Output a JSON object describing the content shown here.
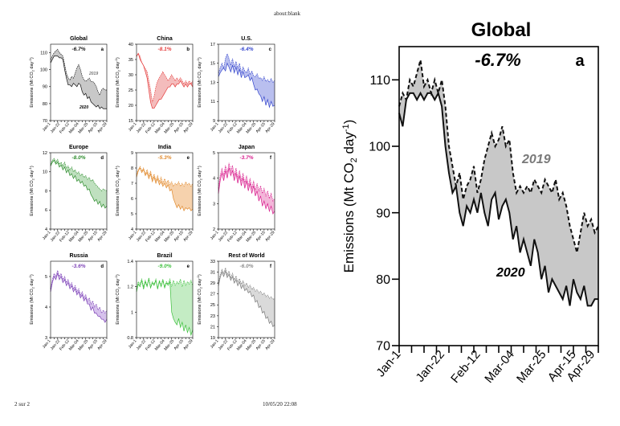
{
  "browser": {
    "tab_label": "about:blank"
  },
  "footer": {
    "page_counter": "2 sur 2",
    "timestamp": "10/05/20 22:08"
  },
  "zoom": {
    "panel_title": "Global",
    "panel_letter": "a",
    "change": "-6.7%",
    "ylabel_main": "Emissions (Mt CO",
    "ylabel_sub": "2",
    "ylabel_tail": " day",
    "ylabel_sup": "-1",
    "ylabel_end": ")",
    "label_2019": "2019",
    "label_2020": "2020"
  },
  "chart_data": [
    {
      "type": "area",
      "panel": "main",
      "title": "Global",
      "letter": "a",
      "change": "-6.7%",
      "change_color": "#111111",
      "ylim": [
        70,
        115
      ],
      "yticks": [
        70,
        80,
        90,
        100,
        110
      ],
      "xticks": [
        "Jan-1",
        "Jan-22",
        "Feb-12",
        "Mar-04",
        "Mar-25",
        "Apr-15",
        "Apr-29"
      ],
      "color": "#111111",
      "fill": "#c8c8c8",
      "series": [
        {
          "name": "2019",
          "values": [
            106,
            108,
            107,
            110,
            109,
            111,
            113,
            109,
            110,
            108,
            110,
            108,
            110,
            106,
            100,
            97,
            94,
            96,
            92,
            94,
            95,
            97,
            93,
            95,
            98,
            100,
            102,
            100,
            101,
            103,
            100,
            101,
            96,
            93,
            94,
            93,
            94,
            93,
            95,
            94,
            93,
            95,
            94,
            93,
            95,
            92,
            93,
            91,
            88,
            86,
            84,
            87,
            90,
            88,
            89,
            87,
            88
          ]
        },
        {
          "name": "2020",
          "values": [
            105,
            103,
            107,
            108,
            108,
            107,
            108,
            107,
            108,
            108,
            107,
            108,
            106,
            100,
            96,
            93,
            94,
            90,
            88,
            91,
            90,
            92,
            90,
            93,
            90,
            88,
            92,
            93,
            89,
            91,
            92,
            90,
            86,
            88,
            84,
            86,
            84,
            82,
            86,
            84,
            80,
            82,
            78,
            80,
            79,
            78,
            77,
            79,
            76,
            80,
            78,
            77,
            79,
            76,
            76,
            77,
            77
          ]
        }
      ]
    },
    {
      "type": "area",
      "panel": "small",
      "title": "Global",
      "letter": "a",
      "change": "-6.7%",
      "change_color": "#111111",
      "ylim": [
        70,
        115
      ],
      "yticks": [
        70,
        80,
        90,
        100,
        110
      ],
      "xticks": [
        "Jan-1",
        "Jan-22",
        "Feb-12",
        "Mar-04",
        "Mar-25",
        "Apr-15",
        "Apr-29"
      ],
      "color": "#111111",
      "fill": "#c8c8c8",
      "label_2019": "2019",
      "label_2020": "2020",
      "series": [
        {
          "name": "2019",
          "values": [
            106,
            108,
            110,
            111,
            112,
            110,
            109,
            108,
            103,
            98,
            95,
            94,
            96,
            95,
            98,
            101,
            103,
            100,
            96,
            94,
            93,
            94,
            95,
            93,
            93,
            92,
            90,
            87,
            85,
            88,
            89,
            88,
            88
          ]
        },
        {
          "name": "2020",
          "values": [
            104,
            106,
            108,
            108,
            108,
            107,
            107,
            106,
            100,
            95,
            91,
            91,
            90,
            92,
            91,
            90,
            92,
            91,
            87,
            85,
            86,
            83,
            84,
            81,
            80,
            79,
            78,
            79,
            77,
            78,
            77,
            77,
            77
          ]
        }
      ]
    },
    {
      "type": "area",
      "panel": "small",
      "title": "China",
      "letter": "b",
      "change": "-8.1%",
      "change_color": "#e53b3b",
      "ylim": [
        15,
        40
      ],
      "yticks": [
        15,
        20,
        25,
        30,
        35,
        40
      ],
      "xticks": [
        "Jan-1",
        "Jan-22",
        "Feb-12",
        "Mar-04",
        "Mar-25",
        "Apr-15",
        "Apr-29"
      ],
      "color": "#e53b3b",
      "fill": "#f4bcbc",
      "series": [
        {
          "name": "2019",
          "values": [
            36,
            37,
            36,
            34,
            33,
            32,
            31,
            28,
            25,
            21,
            23,
            26,
            28,
            29,
            30,
            31,
            30,
            29,
            28,
            29,
            30,
            29,
            28,
            29,
            28,
            29,
            28,
            27,
            28,
            27,
            28,
            27,
            28
          ]
        },
        {
          "name": "2020",
          "values": [
            36,
            37,
            35,
            34,
            33,
            31,
            29,
            25,
            21,
            19,
            19,
            20,
            21,
            22,
            22,
            23,
            24,
            25,
            26,
            26,
            27,
            27,
            26,
            27,
            27,
            28,
            27,
            26,
            27,
            26,
            27,
            27,
            26
          ]
        }
      ]
    },
    {
      "type": "area",
      "panel": "small",
      "title": "U.S.",
      "letter": "c",
      "change": "-6.4%",
      "change_color": "#3344cc",
      "ylim": [
        9,
        17
      ],
      "yticks": [
        9,
        11,
        13,
        15,
        17
      ],
      "xticks": [
        "Jan-1",
        "Jan-22",
        "Feb-12",
        "Mar-04",
        "Mar-25",
        "Apr-15",
        "Apr-29"
      ],
      "color": "#3344cc",
      "fill": "#b9bfef",
      "series": [
        {
          "name": "2019",
          "values": [
            14,
            14.5,
            15,
            14.5,
            15.5,
            16,
            15.5,
            14.8,
            15.5,
            14.6,
            15.2,
            14.5,
            15,
            14,
            14.6,
            14.2,
            14,
            14.5,
            13.8,
            14.2,
            13.7,
            13.6,
            13.9,
            13.4,
            13.5,
            13.2,
            13.6,
            13.1,
            13.3,
            13,
            13.4,
            13,
            13.2
          ]
        },
        {
          "name": "2020",
          "values": [
            13.6,
            14,
            14.3,
            14.5,
            14.2,
            15,
            14.6,
            14.1,
            14.8,
            14,
            14.6,
            13.8,
            14.4,
            13.5,
            14.1,
            13.5,
            13.6,
            13.8,
            13.2,
            13.5,
            12.8,
            12.2,
            12.3,
            11.8,
            11.6,
            11,
            11.5,
            10.6,
            11.2,
            10.4,
            11,
            10.5,
            10.6
          ]
        }
      ]
    },
    {
      "type": "area",
      "panel": "small",
      "title": "Europe",
      "letter": "d",
      "change": "-8.0%",
      "change_color": "#2a8a2a",
      "ylim": [
        4,
        12
      ],
      "yticks": [
        4,
        6,
        8,
        10,
        12
      ],
      "xticks": [
        "Jan-1",
        "Jan-22",
        "Feb-12",
        "Mar-04",
        "Mar-25",
        "Apr-15",
        "Apr-29"
      ],
      "color": "#2a8a2a",
      "fill": "#bfe0bf",
      "series": [
        {
          "name": "2019",
          "values": [
            10.8,
            11.2,
            11.4,
            11,
            11.3,
            10.8,
            11,
            10.6,
            11,
            10.4,
            10.6,
            10.2,
            10.5,
            10,
            10.2,
            9.8,
            10,
            9.6,
            9.8,
            9.4,
            9.6,
            9.2,
            9.4,
            9,
            9.2,
            8.8,
            8.6,
            8.4,
            8.2,
            8,
            8.2,
            8.1,
            8
          ]
        },
        {
          "name": "2020",
          "values": [
            10.6,
            11,
            11.2,
            10.8,
            11,
            10.5,
            10.7,
            10.2,
            10.5,
            9.9,
            10.2,
            9.6,
            9.8,
            9.3,
            9.6,
            9,
            9.2,
            8.8,
            9,
            8.5,
            8.6,
            8.1,
            8.2,
            7.6,
            7.3,
            6.9,
            7.1,
            6.6,
            6.9,
            6.3,
            6.6,
            6.2,
            6.4
          ]
        }
      ]
    },
    {
      "type": "area",
      "panel": "small",
      "title": "India",
      "letter": "e",
      "change": "-5.3%",
      "change_color": "#e08a2e",
      "ylim": [
        4,
        9
      ],
      "yticks": [
        4,
        5,
        6,
        7,
        8,
        9
      ],
      "xticks": [
        "Jan-1",
        "Jan-22",
        "Feb-12",
        "Mar-04",
        "Mar-25",
        "Apr-15",
        "Apr-29"
      ],
      "color": "#e08a2e",
      "fill": "#f6d2ad",
      "series": [
        {
          "name": "2019",
          "values": [
            7.6,
            7.9,
            8.1,
            7.8,
            8,
            7.6,
            7.9,
            7.5,
            7.8,
            7.3,
            7.6,
            7.2,
            7.5,
            7.1,
            7.4,
            7,
            7.3,
            7,
            7.2,
            6.9,
            7.1,
            6.8,
            7,
            6.9,
            7.1,
            6.8,
            7,
            6.8,
            7.1,
            6.9,
            7,
            6.8,
            7
          ]
        },
        {
          "name": "2020",
          "values": [
            7.4,
            7.8,
            8,
            7.7,
            7.9,
            7.5,
            7.7,
            7.3,
            7.6,
            7.1,
            7.4,
            7,
            7.3,
            6.9,
            7.1,
            6.8,
            7,
            6.7,
            6.9,
            6.5,
            6.6,
            6,
            5.7,
            5.4,
            5.6,
            5.3,
            5.5,
            5.2,
            5.4,
            5.3,
            5.4,
            5.2,
            5.3
          ]
        }
      ]
    },
    {
      "type": "area",
      "panel": "small",
      "title": "Japan",
      "letter": "f",
      "change": "-3.7%",
      "change_color": "#d81b8c",
      "ylim": [
        2,
        5
      ],
      "yticks": [
        2,
        3,
        4,
        5
      ],
      "xticks": [
        "Jan-1",
        "Jan-22",
        "Feb-12",
        "Mar-04",
        "Mar-25",
        "Apr-15",
        "Apr-29"
      ],
      "color": "#d81b8c",
      "fill": "#f3b6d9",
      "series": [
        {
          "name": "2019",
          "values": [
            3.6,
            4.1,
            4.4,
            4.1,
            4.5,
            4.2,
            4.6,
            4.3,
            4.5,
            4.1,
            4.4,
            4,
            4.3,
            3.9,
            4.2,
            3.8,
            4.1,
            3.7,
            4,
            3.6,
            3.9,
            3.5,
            3.8,
            3.5,
            3.7,
            3.4,
            3.6,
            3.3,
            3.5,
            3.2,
            3.4,
            3.1,
            3.2
          ]
        },
        {
          "name": "2020",
          "values": [
            3.4,
            3.9,
            4.2,
            3.9,
            4.3,
            4,
            4.4,
            4.1,
            4.3,
            3.9,
            4.2,
            3.8,
            4.1,
            3.7,
            4,
            3.6,
            3.9,
            3.5,
            3.8,
            3.4,
            3.7,
            3.3,
            3.5,
            3.1,
            3.3,
            2.9,
            3.1,
            2.8,
            3,
            2.7,
            2.9,
            2.6,
            2.7
          ]
        }
      ]
    },
    {
      "type": "area",
      "panel": "small",
      "title": "Russia",
      "letter": "d",
      "change": "-3.6%",
      "change_color": "#7b3fb5",
      "ylim": [
        3,
        5.5
      ],
      "yticks": [
        3,
        4,
        5
      ],
      "xticks": [
        "Jan-1",
        "Jan-22",
        "Feb-12",
        "Mar-04",
        "Mar-25",
        "Apr-15",
        "Apr-29"
      ],
      "color": "#7b3fb5",
      "fill": "#d6c1ec",
      "series": [
        {
          "name": "2019",
          "values": [
            4.6,
            4.9,
            5.1,
            5,
            5.2,
            5,
            5.1,
            4.9,
            5,
            4.8,
            4.9,
            4.7,
            4.8,
            4.6,
            4.7,
            4.5,
            4.6,
            4.4,
            4.5,
            4.3,
            4.4,
            4.2,
            4.3,
            4.1,
            4.2,
            4,
            4.1,
            3.9,
            4,
            3.8,
            3.9,
            3.8,
            3.9
          ]
        },
        {
          "name": "2020",
          "values": [
            4.5,
            4.8,
            5,
            4.9,
            5.1,
            4.9,
            5,
            4.8,
            4.9,
            4.7,
            4.8,
            4.6,
            4.7,
            4.5,
            4.6,
            4.4,
            4.5,
            4.3,
            4.4,
            4.2,
            4.3,
            4.1,
            4.1,
            3.9,
            4,
            3.8,
            3.8,
            3.7,
            3.7,
            3.6,
            3.6,
            3.5,
            3.6
          ]
        }
      ]
    },
    {
      "type": "area",
      "panel": "small",
      "title": "Brazil",
      "letter": "e",
      "change": "-9.0%",
      "change_color": "#3bbf3b",
      "ylim": [
        0.8,
        1.4
      ],
      "yticks": [
        0.8,
        1.0,
        1.2,
        1.4
      ],
      "xticks": [
        "Jan-1",
        "Jan-22",
        "Feb-12",
        "Mar-04",
        "Mar-25",
        "Apr-15",
        "Apr-29"
      ],
      "color": "#3bbf3b",
      "fill": "#c4ecc4",
      "series": [
        {
          "name": "2019",
          "values": [
            1.18,
            1.24,
            1.22,
            1.26,
            1.2,
            1.25,
            1.21,
            1.27,
            1.2,
            1.24,
            1.22,
            1.26,
            1.19,
            1.25,
            1.21,
            1.26,
            1.2,
            1.24,
            1.22,
            1.26,
            1.2,
            1.25,
            1.21,
            1.24,
            1.22,
            1.26,
            1.2,
            1.25,
            1.21,
            1.24,
            1.22,
            1.25,
            1.21
          ]
        },
        {
          "name": "2020",
          "values": [
            1.16,
            1.22,
            1.2,
            1.25,
            1.18,
            1.24,
            1.2,
            1.26,
            1.19,
            1.23,
            1.21,
            1.25,
            1.18,
            1.24,
            1.2,
            1.25,
            1.19,
            1.23,
            1.21,
            1.24,
            1.0,
            0.95,
            0.92,
            0.9,
            0.95,
            0.88,
            0.92,
            0.85,
            0.9,
            0.84,
            0.88,
            0.82,
            0.86
          ]
        }
      ]
    },
    {
      "type": "area",
      "panel": "small",
      "title": "Rest of World",
      "letter": "f",
      "change": "-6.0%",
      "change_color": "#8a8a8a",
      "ylim": [
        19,
        33
      ],
      "yticks": [
        19,
        21,
        23,
        25,
        27,
        29,
        31,
        33
      ],
      "xticks": [
        "Jan-1",
        "Jan-22",
        "Feb-12",
        "Mar-04",
        "Mar-25",
        "Apr-15",
        "Apr-29"
      ],
      "color": "#7a7a7a",
      "fill": "#dadada",
      "series": [
        {
          "name": "2019",
          "values": [
            29,
            30.5,
            31.5,
            30.8,
            31.8,
            30.5,
            31.2,
            30,
            30.8,
            29.6,
            30.3,
            29.2,
            29.8,
            28.8,
            29.4,
            28.5,
            29,
            28.2,
            28.6,
            27.8,
            28.2,
            27.5,
            27.8,
            27.2,
            27.5,
            26.8,
            27.2,
            26.5,
            26.8,
            26.2,
            26.5,
            26,
            26.2
          ]
        },
        {
          "name": "2020",
          "values": [
            28.5,
            30,
            31,
            30.2,
            31.2,
            30,
            30.6,
            29.5,
            30.2,
            29,
            29.6,
            28.5,
            29.2,
            28,
            28.6,
            27.6,
            28,
            27.2,
            27.5,
            26.5,
            26.8,
            25.5,
            25.8,
            24.5,
            24.8,
            23.5,
            23.8,
            22.5,
            22.8,
            21.6,
            22,
            21,
            21.3
          ]
        }
      ]
    }
  ]
}
